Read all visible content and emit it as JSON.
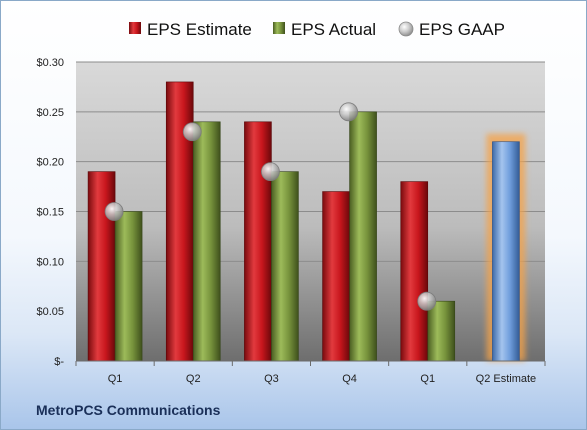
{
  "company": "MetroPCS Communications",
  "chart_data": {
    "type": "bar",
    "categories": [
      "Q1",
      "Q2",
      "Q3",
      "Q4",
      "Q1",
      "Q2 Estimate"
    ],
    "series": [
      {
        "name": "EPS Estimate",
        "type": "bar",
        "color": "#c8161d",
        "values": [
          0.19,
          0.28,
          0.24,
          0.17,
          0.18,
          null
        ]
      },
      {
        "name": "EPS Actual",
        "type": "bar",
        "color": "#77933c",
        "values": [
          0.15,
          0.24,
          0.19,
          0.25,
          0.06,
          null
        ]
      },
      {
        "name": "EPS GAAP",
        "type": "marker",
        "color": "#b0b0b0",
        "values": [
          0.15,
          0.23,
          0.19,
          0.25,
          0.06,
          null
        ]
      }
    ],
    "estimate": {
      "category": "Q2 Estimate",
      "value": 0.22,
      "color": "#6f9ddc",
      "glow_color": "#f5a34a"
    },
    "y_ticks": [
      "$0.30",
      "$0.25",
      "$0.20",
      "$0.15",
      "$0.10",
      "$0.05",
      "$-"
    ],
    "ylim": [
      0,
      0.3
    ],
    "grid": true,
    "legend_position": "top"
  }
}
